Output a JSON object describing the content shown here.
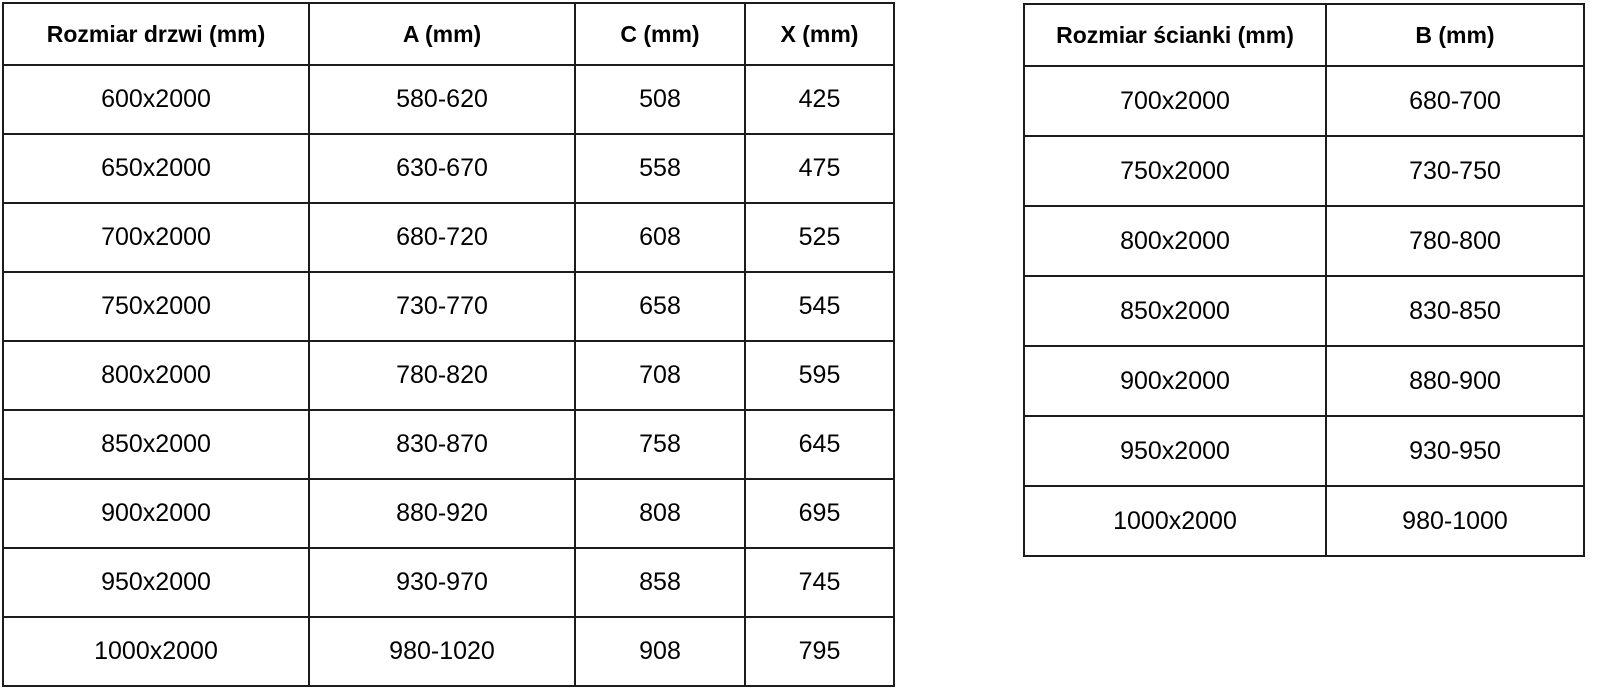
{
  "colors": {
    "background": "#ffffff",
    "border": "#1c1c1c",
    "text": "#000000"
  },
  "tables": [
    {
      "name": "door-sizes",
      "headers": [
        "Rozmiar drzwi (mm)",
        "A (mm)",
        "C (mm)",
        "X (mm)"
      ],
      "rows": [
        [
          "600x2000",
          "580-620",
          "508",
          "425"
        ],
        [
          "650x2000",
          "630-670",
          "558",
          "475"
        ],
        [
          "700x2000",
          "680-720",
          "608",
          "525"
        ],
        [
          "750x2000",
          "730-770",
          "658",
          "545"
        ],
        [
          "800x2000",
          "780-820",
          "708",
          "595"
        ],
        [
          "850x2000",
          "830-870",
          "758",
          "645"
        ],
        [
          "900x2000",
          "880-920",
          "808",
          "695"
        ],
        [
          "950x2000",
          "930-970",
          "858",
          "745"
        ],
        [
          "1000x2000",
          "980-1020",
          "908",
          "795"
        ]
      ]
    },
    {
      "name": "wall-sizes",
      "headers": [
        "Rozmiar ścianki (mm)",
        "B (mm)"
      ],
      "rows": [
        [
          "700x2000",
          "680-700"
        ],
        [
          "750x2000",
          "730-750"
        ],
        [
          "800x2000",
          "780-800"
        ],
        [
          "850x2000",
          "830-850"
        ],
        [
          "900x2000",
          "880-900"
        ],
        [
          "950x2000",
          "930-950"
        ],
        [
          "1000x2000",
          "980-1000"
        ]
      ]
    }
  ]
}
